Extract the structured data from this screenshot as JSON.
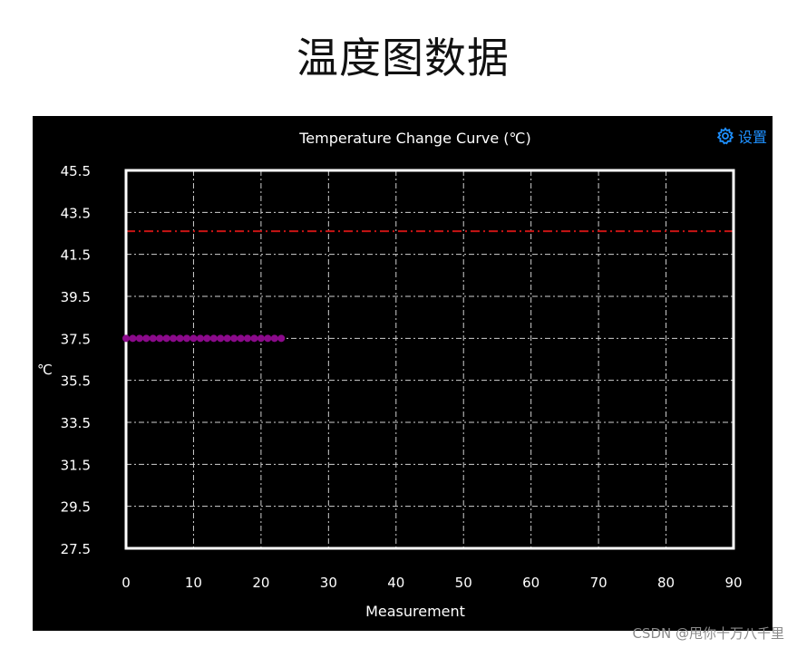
{
  "page": {
    "heading": "温度图数据",
    "watermark": "CSDN @甩你十万八千里"
  },
  "toolbar": {
    "settings_label": "设置",
    "settings_icon": "gear-icon"
  },
  "colors": {
    "background": "#000000",
    "axes": "#ffffff",
    "grid": "#cfcfcf",
    "text": "#ffffff",
    "threshold_line": "#c81414",
    "series": "#8b0a8b",
    "accent": "#1e90ff"
  },
  "chart_data": {
    "type": "line",
    "title": "Temperature Change Curve (℃)",
    "xlabel": "Measurement",
    "ylabel": "℃",
    "xlim": [
      0,
      90
    ],
    "ylim": [
      27.5,
      45.5
    ],
    "x_ticks": [
      0,
      10,
      20,
      30,
      40,
      50,
      60,
      70,
      80,
      90
    ],
    "y_ticks": [
      27.5,
      29.5,
      31.5,
      33.5,
      35.5,
      37.5,
      39.5,
      41.5,
      43.5,
      45.5
    ],
    "y_tick_labels": [
      "27.5",
      "29.5",
      "31.5",
      "33.5",
      "35.5",
      "37.5",
      "39.5",
      "41.5",
      "43.5",
      "45.5"
    ],
    "grid": true,
    "threshold": {
      "y": 42.6,
      "style": "dash-dot"
    },
    "series": [
      {
        "x": [
          0,
          1,
          2,
          3,
          4,
          5,
          6,
          7,
          8,
          9,
          10,
          11,
          12,
          13,
          14,
          15,
          16,
          17,
          18,
          19,
          20,
          21,
          22,
          23
        ],
        "values": [
          37.5,
          37.5,
          37.5,
          37.5,
          37.5,
          37.5,
          37.5,
          37.5,
          37.5,
          37.5,
          37.5,
          37.5,
          37.5,
          37.5,
          37.5,
          37.5,
          37.5,
          37.5,
          37.5,
          37.5,
          37.5,
          37.5,
          37.5,
          37.5
        ]
      }
    ]
  }
}
